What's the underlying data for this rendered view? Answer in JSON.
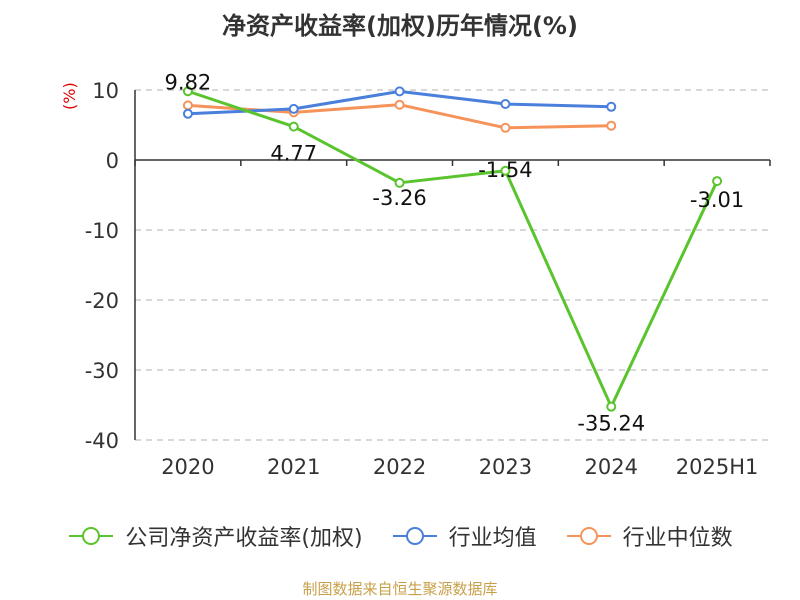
{
  "chart_data": {
    "type": "line",
    "title": "净资产收益率(加权)历年情况(%)",
    "ylabel": "(%)",
    "categories": [
      "2020",
      "2021",
      "2022",
      "2023",
      "2024",
      "2025H1"
    ],
    "ylim": [
      -40,
      10
    ],
    "yticks": [
      10,
      0,
      -10,
      -20,
      -30,
      -40
    ],
    "grid": true,
    "legend_position": "bottom",
    "series": [
      {
        "name": "公司净资产收益率(加权)",
        "color": "#5ac42e",
        "values": [
          9.82,
          4.77,
          -3.26,
          -1.54,
          -35.24,
          -3.01
        ],
        "data_labels": [
          "9.82",
          "4.77",
          "-3.26",
          "-1.54",
          "-35.24",
          "-3.01"
        ]
      },
      {
        "name": "行业均值",
        "color": "#4a7fdc",
        "values": [
          6.6,
          7.3,
          9.8,
          8.0,
          7.6,
          null
        ]
      },
      {
        "name": "行业中位数",
        "color": "#f5935a",
        "values": [
          7.8,
          6.8,
          7.9,
          4.6,
          4.9,
          null
        ]
      }
    ]
  },
  "footer": "制图数据来自恒生聚源数据库"
}
